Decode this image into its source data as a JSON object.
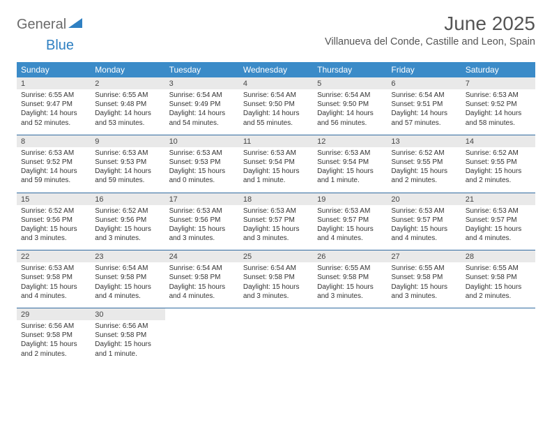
{
  "brand": {
    "part1": "General",
    "part2": "Blue"
  },
  "title": "June 2025",
  "location": "Villanueva del Conde, Castille and Leon, Spain",
  "colors": {
    "header_bg": "#3b8bc8",
    "header_text": "#ffffff",
    "daynum_bg": "#e9e9e9",
    "border": "#2f6aa0",
    "brand_blue": "#2f80c2",
    "brand_gray": "#6a6a6a"
  },
  "weekdays": [
    "Sunday",
    "Monday",
    "Tuesday",
    "Wednesday",
    "Thursday",
    "Friday",
    "Saturday"
  ],
  "weeks": [
    [
      {
        "n": "1",
        "sr": "6:55 AM",
        "ss": "9:47 PM",
        "dl": "14 hours and 52 minutes."
      },
      {
        "n": "2",
        "sr": "6:55 AM",
        "ss": "9:48 PM",
        "dl": "14 hours and 53 minutes."
      },
      {
        "n": "3",
        "sr": "6:54 AM",
        "ss": "9:49 PM",
        "dl": "14 hours and 54 minutes."
      },
      {
        "n": "4",
        "sr": "6:54 AM",
        "ss": "9:50 PM",
        "dl": "14 hours and 55 minutes."
      },
      {
        "n": "5",
        "sr": "6:54 AM",
        "ss": "9:50 PM",
        "dl": "14 hours and 56 minutes."
      },
      {
        "n": "6",
        "sr": "6:54 AM",
        "ss": "9:51 PM",
        "dl": "14 hours and 57 minutes."
      },
      {
        "n": "7",
        "sr": "6:53 AM",
        "ss": "9:52 PM",
        "dl": "14 hours and 58 minutes."
      }
    ],
    [
      {
        "n": "8",
        "sr": "6:53 AM",
        "ss": "9:52 PM",
        "dl": "14 hours and 59 minutes."
      },
      {
        "n": "9",
        "sr": "6:53 AM",
        "ss": "9:53 PM",
        "dl": "14 hours and 59 minutes."
      },
      {
        "n": "10",
        "sr": "6:53 AM",
        "ss": "9:53 PM",
        "dl": "15 hours and 0 minutes."
      },
      {
        "n": "11",
        "sr": "6:53 AM",
        "ss": "9:54 PM",
        "dl": "15 hours and 1 minute."
      },
      {
        "n": "12",
        "sr": "6:53 AM",
        "ss": "9:54 PM",
        "dl": "15 hours and 1 minute."
      },
      {
        "n": "13",
        "sr": "6:52 AM",
        "ss": "9:55 PM",
        "dl": "15 hours and 2 minutes."
      },
      {
        "n": "14",
        "sr": "6:52 AM",
        "ss": "9:55 PM",
        "dl": "15 hours and 2 minutes."
      }
    ],
    [
      {
        "n": "15",
        "sr": "6:52 AM",
        "ss": "9:56 PM",
        "dl": "15 hours and 3 minutes."
      },
      {
        "n": "16",
        "sr": "6:52 AM",
        "ss": "9:56 PM",
        "dl": "15 hours and 3 minutes."
      },
      {
        "n": "17",
        "sr": "6:53 AM",
        "ss": "9:56 PM",
        "dl": "15 hours and 3 minutes."
      },
      {
        "n": "18",
        "sr": "6:53 AM",
        "ss": "9:57 PM",
        "dl": "15 hours and 3 minutes."
      },
      {
        "n": "19",
        "sr": "6:53 AM",
        "ss": "9:57 PM",
        "dl": "15 hours and 4 minutes."
      },
      {
        "n": "20",
        "sr": "6:53 AM",
        "ss": "9:57 PM",
        "dl": "15 hours and 4 minutes."
      },
      {
        "n": "21",
        "sr": "6:53 AM",
        "ss": "9:57 PM",
        "dl": "15 hours and 4 minutes."
      }
    ],
    [
      {
        "n": "22",
        "sr": "6:53 AM",
        "ss": "9:58 PM",
        "dl": "15 hours and 4 minutes."
      },
      {
        "n": "23",
        "sr": "6:54 AM",
        "ss": "9:58 PM",
        "dl": "15 hours and 4 minutes."
      },
      {
        "n": "24",
        "sr": "6:54 AM",
        "ss": "9:58 PM",
        "dl": "15 hours and 4 minutes."
      },
      {
        "n": "25",
        "sr": "6:54 AM",
        "ss": "9:58 PM",
        "dl": "15 hours and 3 minutes."
      },
      {
        "n": "26",
        "sr": "6:55 AM",
        "ss": "9:58 PM",
        "dl": "15 hours and 3 minutes."
      },
      {
        "n": "27",
        "sr": "6:55 AM",
        "ss": "9:58 PM",
        "dl": "15 hours and 3 minutes."
      },
      {
        "n": "28",
        "sr": "6:55 AM",
        "ss": "9:58 PM",
        "dl": "15 hours and 2 minutes."
      }
    ],
    [
      {
        "n": "29",
        "sr": "6:56 AM",
        "ss": "9:58 PM",
        "dl": "15 hours and 2 minutes."
      },
      {
        "n": "30",
        "sr": "6:56 AM",
        "ss": "9:58 PM",
        "dl": "15 hours and 1 minute."
      },
      null,
      null,
      null,
      null,
      null
    ]
  ],
  "labels": {
    "sunrise": "Sunrise: ",
    "sunset": "Sunset: ",
    "daylight": "Daylight: "
  }
}
